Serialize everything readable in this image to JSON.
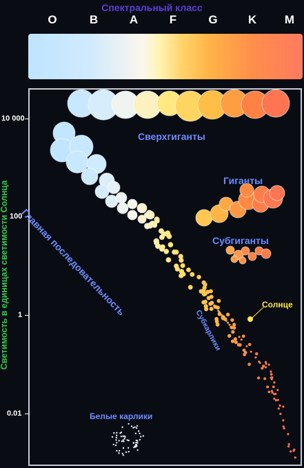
{
  "title": "Спектральный класс",
  "spectral_classes": [
    "O",
    "B",
    "A",
    "F",
    "G",
    "K",
    "M"
  ],
  "y_axis": {
    "label": "Светимость в единицах светимости Солнца",
    "ticks": [
      "10 000",
      "100",
      "1",
      "0.01"
    ]
  },
  "regions": {
    "supergiants": "Сверхгиганты",
    "giants": "Гиганты",
    "subgiants": "Субгиганты",
    "main_sequence": "Главная последовательность",
    "subdwarfs": "Субкарлики",
    "sun": "Солнце",
    "white_dwarfs": "Белые карлики"
  },
  "colors": {
    "title": "#5a3fd8",
    "axis_label": "#2fcf4a",
    "region_label": "#6c8cff",
    "sun_label": "#ffe94a"
  }
}
